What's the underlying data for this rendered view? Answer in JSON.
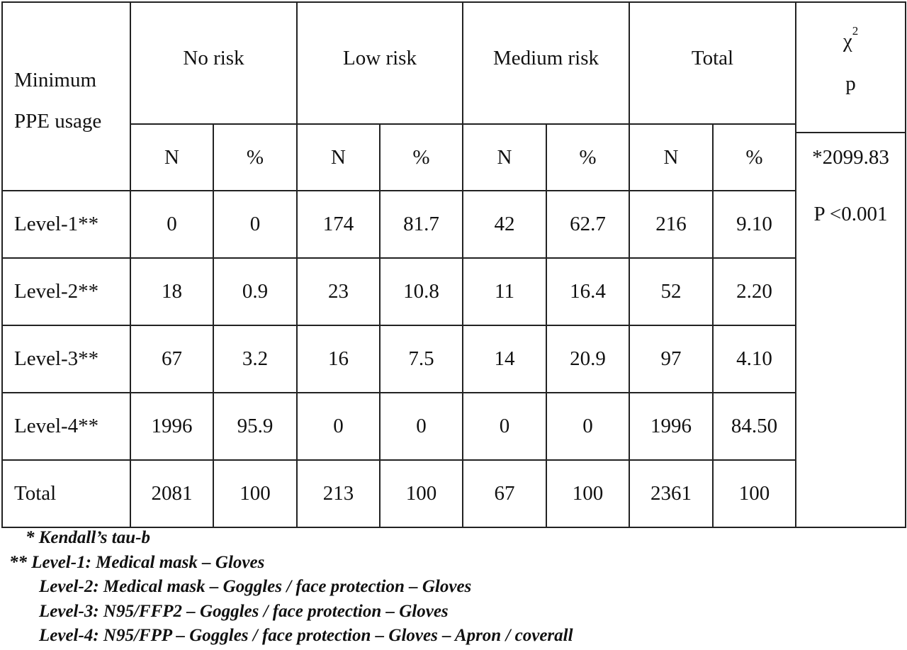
{
  "table": {
    "corner_label_line1": "Minimum",
    "corner_label_line2": "PPE usage",
    "groups": [
      "No risk",
      "Low risk",
      "Medium risk",
      "Total"
    ],
    "subheaders": [
      "N",
      "%",
      "N",
      "%",
      "N",
      "%",
      "N",
      "%"
    ],
    "stat_header_symbol": "χ",
    "stat_header_sup": "2",
    "stat_header_p": "p",
    "stat_value": "*2099.83",
    "stat_p_value": "P <0.001",
    "rows": [
      {
        "label": "Level-1**",
        "cells": [
          "0",
          "0",
          "174",
          "81.7",
          "42",
          "62.7",
          "216",
          "9.10"
        ]
      },
      {
        "label": "Level-2**",
        "cells": [
          "18",
          "0.9",
          "23",
          "10.8",
          "11",
          "16.4",
          "52",
          "2.20"
        ]
      },
      {
        "label": "Level-3**",
        "cells": [
          "67",
          "3.2",
          "16",
          "7.5",
          "14",
          "20.9",
          "97",
          "4.10"
        ]
      },
      {
        "label": "Level-4**",
        "cells": [
          "1996",
          "95.9",
          "0",
          "0",
          "0",
          "0",
          "1996",
          "84.50"
        ]
      },
      {
        "label": "Total",
        "cells": [
          "2081",
          "100",
          "213",
          "100",
          "67",
          "100",
          "2361",
          "100"
        ]
      }
    ]
  },
  "footnotes": [
    "* Kendall’s tau-b",
    "** Level-1: Medical mask – Gloves",
    "Level-2: Medical mask – Goggles / face protection – Gloves",
    "Level-3: N95/FFP2 – Goggles / face protection – Gloves",
    "Level-4: N95/FPP – Goggles / face protection – Gloves – Apron / coverall"
  ]
}
